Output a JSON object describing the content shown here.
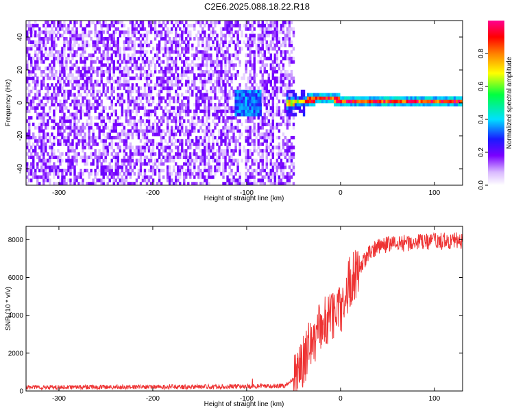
{
  "title": "C2E6.2025.088.18.22.R18",
  "chart_data": [
    {
      "type": "heatmap",
      "xlabel": "Height of straight line (km)",
      "ylabel": "Frequency (Hz)",
      "xlim": [
        -335,
        130
      ],
      "ylim": [
        -50,
        50
      ],
      "x_ticks": [
        -300,
        -200,
        -100,
        0,
        100
      ],
      "y_ticks": [
        -40,
        -20,
        0,
        20,
        40
      ],
      "colorbar": {
        "label": "Normalized spectral amplitude",
        "range": [
          0,
          1
        ],
        "ticks": [
          "0.0",
          "0.2",
          "0.4",
          "0.6",
          "0.8"
        ]
      },
      "regions": [
        {
          "x_range": [
            -335,
            -50
          ],
          "description": "broadband noise, amplitude ~0.1-0.2"
        },
        {
          "x_range": [
            -112,
            -88
          ],
          "description": "weak narrowband near 0 Hz, amplitude ~0.3"
        },
        {
          "x_range": [
            -55,
            130
          ],
          "description": "strong narrowband signal at ~0-3 Hz, amplitude up to ~1.0"
        }
      ],
      "signal_line": [
        [
          -60,
          0
        ],
        [
          -40,
          1
        ],
        [
          -25,
          3
        ],
        [
          -10,
          3
        ],
        [
          0,
          1
        ],
        [
          20,
          1
        ],
        [
          60,
          0.5
        ],
        [
          130,
          0.5
        ]
      ]
    },
    {
      "type": "line",
      "xlabel": "Height of straight line (km)",
      "ylabel": "SNR (10 * v/v)",
      "xlim": [
        -335,
        130
      ],
      "ylim": [
        0,
        8700
      ],
      "x_ticks": [
        -300,
        -200,
        -100,
        0,
        100
      ],
      "y_ticks": [
        0,
        2000,
        4000,
        6000,
        8000
      ],
      "color": "#ee3333",
      "series": [
        {
          "x": [
            -335,
            -200,
            -100,
            -60,
            -50,
            -40,
            -30,
            -20,
            -10,
            0,
            5,
            10,
            20,
            30,
            40,
            60,
            80,
            100,
            130
          ],
          "values": [
            200,
            210,
            240,
            280,
            600,
            1500,
            2700,
            3500,
            3900,
            4300,
            5000,
            5800,
            6500,
            7200,
            7700,
            7800,
            7850,
            7900,
            7950
          ]
        }
      ]
    }
  ]
}
